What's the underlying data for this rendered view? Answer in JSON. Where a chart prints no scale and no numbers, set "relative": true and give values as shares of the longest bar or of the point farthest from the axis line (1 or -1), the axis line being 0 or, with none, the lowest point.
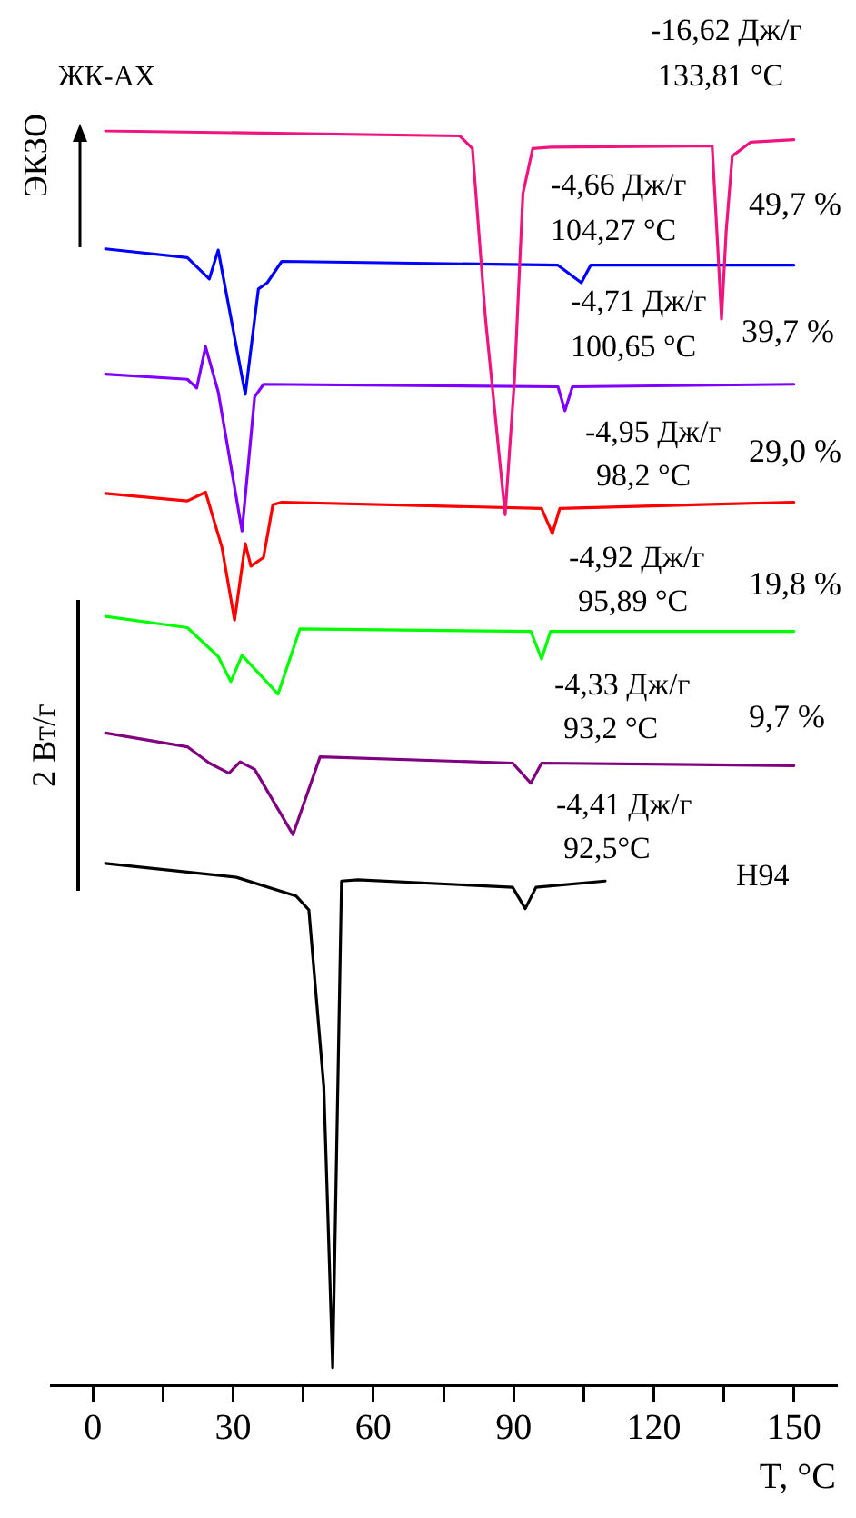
{
  "chart_data": {
    "type": "line",
    "title": "ЖК-АХ",
    "xlabel": "T, °C",
    "ylabel": "ЭКЗО",
    "relative": true,
    "marker": "none",
    "line_style": "solid",
    "xlim": [
      -9,
      159
    ],
    "xticks": [
      0,
      {
        "value": 15,
        "label": null
      },
      30,
      {
        "value": 45,
        "label": null
      },
      60,
      {
        "value": 75,
        "label": null
      },
      90,
      {
        "value": 105,
        "label": null
      },
      120,
      {
        "value": 135,
        "label": null
      },
      150
    ],
    "series": [
      {
        "color": "#f0147f",
        "x": [
          2.7,
          78.5,
          81.2,
          84,
          88.2,
          90.2,
          92,
          94.1,
          97.9,
          132.5,
          133.8,
          134.5,
          135.5,
          136.8,
          140.7,
          150
        ],
        "values": [
          1,
          0.996,
          0.986,
          0.85,
          0.694,
          0.802,
          0.95,
          0.986,
          0.987,
          0.988,
          0.9,
          0.85,
          0.92,
          0.98,
          0.991,
          0.993
        ]
      },
      {
        "color": "#0000ff",
        "x": [
          2.7,
          20.2,
          24.9,
          26.8,
          32.6,
          35.4,
          37.3,
          40.4,
          99.5,
          104.5,
          106.5,
          150
        ],
        "values": [
          0.906,
          0.899,
          0.882,
          0.905,
          0.79,
          0.874,
          0.879,
          0.896,
          0.893,
          0.879,
          0.893,
          0.893
        ]
      },
      {
        "color": "#8000ff",
        "x": [
          2.7,
          20.2,
          22.2,
          24.1,
          26.8,
          31.9,
          34.6,
          36.5,
          99.5,
          101,
          102.6,
          150
        ],
        "values": [
          0.806,
          0.802,
          0.795,
          0.828,
          0.792,
          0.681,
          0.788,
          0.798,
          0.796,
          0.777,
          0.796,
          0.798
        ]
      },
      {
        "color": "#ff0000",
        "x": [
          2.7,
          20.2,
          24.1,
          27.6,
          30.3,
          32.6,
          33.8,
          36.5,
          38.5,
          40.4,
          96,
          98.3,
          99.9,
          150
        ],
        "values": [
          0.711,
          0.705,
          0.712,
          0.668,
          0.61,
          0.671,
          0.653,
          0.66,
          0.702,
          0.704,
          0.699,
          0.679,
          0.699,
          0.704
        ]
      },
      {
        "color": "#00ff00",
        "x": [
          2.7,
          20.2,
          26.8,
          29.5,
          31.9,
          39.6,
          44.3,
          93.7,
          96,
          97.9,
          150
        ],
        "values": [
          0.613,
          0.604,
          0.581,
          0.561,
          0.582,
          0.551,
          0.603,
          0.601,
          0.579,
          0.601,
          0.601
        ]
      },
      {
        "color": "#800080",
        "x": [
          2.7,
          20.2,
          24.9,
          29.1,
          31.5,
          34.6,
          42.8,
          48.6,
          89.8,
          93.7,
          96,
          150
        ],
        "values": [
          0.52,
          0.509,
          0.496,
          0.488,
          0.497,
          0.491,
          0.439,
          0.501,
          0.496,
          0.48,
          0.496,
          0.494
        ]
      },
      {
        "color": "#000000",
        "x": [
          2.7,
          30.7,
          43.5,
          46.2,
          49.4,
          51.3,
          53.2,
          56.7,
          89.8,
          92.5,
          94.8,
          109.6
        ],
        "values": [
          0.416,
          0.405,
          0.39,
          0.379,
          0.238,
          0.014,
          0.402,
          0.403,
          0.397,
          0.38,
          0.397,
          0.402
        ]
      }
    ],
    "annotations": [
      "-16,62 Дж/г",
      "133,81 °C",
      "-4,66 Дж/г",
      "104,27 °C",
      "49,7 %",
      "-4,71 Дж/г",
      "100,65 °C",
      "39,7 %",
      "-4,95 Дж/г",
      "98,2 °C",
      "29,0 %",
      "-4,92 Дж/г",
      "95,89 °C",
      "19,8 %",
      "-4,33 Дж/г",
      "93,2 °C",
      "9,7 %",
      "-4,41 Дж/г",
      "92,5°C",
      "H94",
      "2 Вт/г"
    ]
  }
}
